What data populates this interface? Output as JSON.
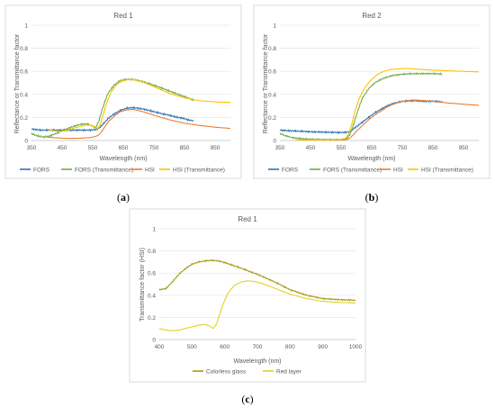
{
  "chart_data": [
    {
      "type": "line",
      "panel_label": "(a)",
      "title": "Red 1",
      "xlabel": "Wavelength (nm)",
      "ylabel": "Reflectance or Transmittance factor",
      "xlim": [
        350,
        1000
      ],
      "ylim": [
        0,
        1
      ],
      "xticks": [
        350,
        450,
        550,
        650,
        750,
        850,
        950
      ],
      "xtick_labels": [
        "350",
        "450",
        "550",
        "650",
        "750",
        "850",
        "950"
      ],
      "yticks": [
        0,
        0.2,
        0.4,
        0.6,
        0.8,
        1
      ],
      "ytick_labels": [
        "0",
        "0.2",
        "0.4",
        "0.6",
        "0.8",
        "1"
      ],
      "grid": "horizontal",
      "legend": "bottom",
      "series": [
        {
          "name": "FORS",
          "color": "#2E75B6",
          "noise": 0.006,
          "x": [
            350,
            380,
            420,
            460,
            500,
            540,
            560,
            570,
            580,
            590,
            600,
            620,
            640,
            660,
            680,
            700,
            720,
            750,
            780,
            800,
            820,
            840,
            850,
            860,
            880
          ],
          "y": [
            0.1,
            0.09,
            0.09,
            0.09,
            0.09,
            0.09,
            0.095,
            0.105,
            0.13,
            0.16,
            0.19,
            0.23,
            0.26,
            0.28,
            0.285,
            0.28,
            0.27,
            0.25,
            0.23,
            0.22,
            0.205,
            0.195,
            0.19,
            0.18,
            0.17
          ]
        },
        {
          "name": "FORS (Transmittance)",
          "color": "#70AD47",
          "noise": 0.006,
          "x": [
            350,
            370,
            390,
            410,
            430,
            450,
            470,
            490,
            510,
            530,
            545,
            560,
            570,
            580,
            590,
            600,
            620,
            640,
            660,
            680,
            700,
            720,
            750,
            780,
            800,
            830,
            860,
            880
          ],
          "y": [
            0.06,
            0.04,
            0.03,
            0.04,
            0.06,
            0.085,
            0.105,
            0.125,
            0.14,
            0.145,
            0.13,
            0.11,
            0.17,
            0.26,
            0.34,
            0.41,
            0.48,
            0.52,
            0.53,
            0.53,
            0.52,
            0.505,
            0.48,
            0.45,
            0.43,
            0.4,
            0.37,
            0.35
          ]
        },
        {
          "name": "HSI",
          "color": "#ED7D31",
          "noise": 0,
          "x": [
            400,
            420,
            450,
            480,
            510,
            540,
            560,
            570,
            580,
            590,
            600,
            620,
            640,
            660,
            680,
            700,
            720,
            750,
            800,
            850,
            900,
            950,
            1000
          ],
          "y": [
            0.03,
            0.025,
            0.02,
            0.018,
            0.02,
            0.025,
            0.035,
            0.05,
            0.08,
            0.12,
            0.16,
            0.21,
            0.25,
            0.265,
            0.27,
            0.26,
            0.245,
            0.22,
            0.18,
            0.15,
            0.13,
            0.115,
            0.105
          ]
        },
        {
          "name": "HSI (Transmittance)",
          "color": "#FFC000",
          "noise": 0,
          "x": [
            400,
            420,
            440,
            460,
            480,
            500,
            520,
            540,
            555,
            565,
            575,
            585,
            595,
            610,
            630,
            650,
            670,
            690,
            710,
            730,
            760,
            800,
            850,
            900,
            950,
            1000
          ],
          "y": [
            0.1,
            0.085,
            0.08,
            0.085,
            0.1,
            0.115,
            0.13,
            0.135,
            0.12,
            0.1,
            0.14,
            0.23,
            0.32,
            0.42,
            0.49,
            0.52,
            0.53,
            0.525,
            0.51,
            0.49,
            0.455,
            0.41,
            0.37,
            0.345,
            0.335,
            0.33
          ]
        }
      ]
    },
    {
      "type": "line",
      "panel_label": "(b)",
      "title": "Red 2",
      "xlabel": "Wavelength (nm)",
      "ylabel": "Reflectance or Transmittance factor",
      "xlim": [
        350,
        1000
      ],
      "ylim": [
        0,
        1
      ],
      "xticks": [
        350,
        450,
        550,
        650,
        750,
        850,
        950
      ],
      "xtick_labels": [
        "350",
        "450",
        "550",
        "650",
        "750",
        "850",
        "950"
      ],
      "yticks": [
        0,
        0.2,
        0.4,
        0.6,
        0.8,
        1
      ],
      "ytick_labels": [
        "0",
        "0.2",
        "0.4",
        "0.6",
        "0.8",
        "1"
      ],
      "grid": "horizontal",
      "legend": "bottom",
      "series": [
        {
          "name": "FORS",
          "color": "#2E75B6",
          "noise": 0.006,
          "x": [
            350,
            380,
            420,
            460,
            500,
            540,
            560,
            570,
            580,
            590,
            600,
            620,
            640,
            660,
            680,
            700,
            720,
            750,
            780,
            800,
            820,
            840,
            860,
            880
          ],
          "y": [
            0.09,
            0.085,
            0.08,
            0.075,
            0.072,
            0.07,
            0.07,
            0.072,
            0.08,
            0.1,
            0.12,
            0.16,
            0.2,
            0.24,
            0.27,
            0.3,
            0.32,
            0.34,
            0.345,
            0.345,
            0.34,
            0.34,
            0.34,
            0.335
          ]
        },
        {
          "name": "FORS (Transmittance)",
          "color": "#70AD47",
          "noise": 0.005,
          "x": [
            350,
            370,
            390,
            410,
            430,
            460,
            500,
            540,
            560,
            570,
            580,
            590,
            600,
            610,
            620,
            640,
            660,
            680,
            700,
            720,
            750,
            780,
            800,
            830,
            860,
            880
          ],
          "y": [
            0.06,
            0.04,
            0.025,
            0.02,
            0.015,
            0.01,
            0.008,
            0.008,
            0.01,
            0.02,
            0.06,
            0.13,
            0.22,
            0.3,
            0.37,
            0.45,
            0.5,
            0.53,
            0.55,
            0.565,
            0.575,
            0.58,
            0.58,
            0.58,
            0.58,
            0.575
          ]
        },
        {
          "name": "HSI",
          "color": "#ED7D31",
          "noise": 0,
          "x": [
            400,
            430,
            470,
            510,
            550,
            570,
            580,
            590,
            600,
            620,
            640,
            660,
            680,
            700,
            720,
            750,
            780,
            800,
            850,
            900,
            950,
            1000
          ],
          "y": [
            0.008,
            0.005,
            0.004,
            0.004,
            0.005,
            0.01,
            0.025,
            0.05,
            0.08,
            0.13,
            0.18,
            0.22,
            0.255,
            0.29,
            0.315,
            0.34,
            0.35,
            0.35,
            0.34,
            0.325,
            0.315,
            0.305
          ]
        },
        {
          "name": "HSI (Transmittance)",
          "color": "#FFC000",
          "noise": 0,
          "x": [
            400,
            430,
            470,
            510,
            550,
            565,
            575,
            585,
            595,
            610,
            630,
            650,
            670,
            690,
            710,
            730,
            760,
            790,
            820,
            850,
            900,
            950,
            1000
          ],
          "y": [
            0.008,
            0.006,
            0.005,
            0.006,
            0.008,
            0.02,
            0.06,
            0.14,
            0.25,
            0.37,
            0.47,
            0.53,
            0.575,
            0.6,
            0.615,
            0.62,
            0.625,
            0.62,
            0.615,
            0.61,
            0.605,
            0.6,
            0.595
          ]
        }
      ]
    },
    {
      "type": "line",
      "panel_label": "(c)",
      "title": "Red 1",
      "xlabel": "Wavelength (nm)",
      "ylabel": "Transmittance factor (HSI)",
      "xlim": [
        400,
        1000
      ],
      "ylim": [
        0,
        1
      ],
      "xticks": [
        400,
        500,
        600,
        700,
        800,
        900,
        1000
      ],
      "xtick_labels": [
        "400",
        "500",
        "600",
        "700",
        "800",
        "900",
        "1000"
      ],
      "yticks": [
        0,
        0.2,
        0.4,
        0.6,
        0.8,
        1
      ],
      "ytick_labels": [
        "0",
        "0.2",
        "0.4",
        "0.6",
        "0.8",
        "1"
      ],
      "grid": "horizontal",
      "legend": "bottom",
      "series": [
        {
          "name": "Colorless glass",
          "color": "#A39B16",
          "noise": 0.005,
          "x": [
            400,
            420,
            440,
            460,
            480,
            500,
            520,
            540,
            560,
            580,
            600,
            620,
            650,
            680,
            700,
            730,
            760,
            800,
            850,
            900,
            950,
            1000
          ],
          "y": [
            0.45,
            0.46,
            0.52,
            0.59,
            0.64,
            0.68,
            0.7,
            0.71,
            0.715,
            0.71,
            0.695,
            0.675,
            0.645,
            0.61,
            0.59,
            0.55,
            0.51,
            0.45,
            0.4,
            0.37,
            0.36,
            0.355
          ]
        },
        {
          "name": "Red layer",
          "color": "#E2D222",
          "noise": 0,
          "x": [
            400,
            420,
            440,
            460,
            480,
            500,
            520,
            540,
            555,
            565,
            575,
            585,
            595,
            610,
            630,
            650,
            670,
            690,
            710,
            730,
            760,
            800,
            850,
            900,
            950,
            1000
          ],
          "y": [
            0.1,
            0.085,
            0.08,
            0.085,
            0.1,
            0.115,
            0.13,
            0.135,
            0.12,
            0.1,
            0.14,
            0.23,
            0.32,
            0.42,
            0.49,
            0.52,
            0.53,
            0.525,
            0.51,
            0.49,
            0.455,
            0.41,
            0.37,
            0.345,
            0.335,
            0.33
          ]
        }
      ]
    }
  ]
}
